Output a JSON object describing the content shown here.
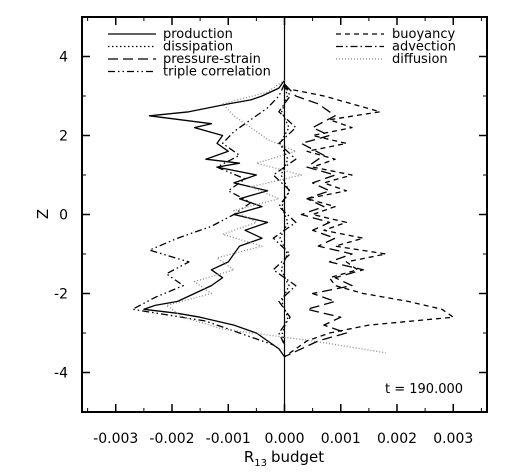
{
  "chart_data": {
    "type": "line",
    "title": "",
    "xlabel": "budget",
    "xlabel_symbol": "R",
    "xlabel_subscript": "13",
    "ylabel": "Z",
    "xlim": [
      -0.0036,
      0.0036
    ],
    "ylim": [
      -5,
      5
    ],
    "xticks": [
      -0.003,
      -0.002,
      -0.001,
      0.0,
      0.001,
      0.002,
      0.003
    ],
    "xtick_labels": [
      "-0.003",
      "-0.002",
      "-0.001",
      "0.000",
      "0.001",
      "0.002",
      "0.003"
    ],
    "yticks": [
      -4,
      -2,
      0,
      2,
      4
    ],
    "ytick_labels": [
      "-4",
      "-2",
      "0",
      "2",
      "4"
    ],
    "grid": false,
    "annotation": "t = 190.000",
    "legend": {
      "left": [
        "production",
        "dissipation",
        "pressure-strain",
        "triple correlation"
      ],
      "right": [
        "buoyancy",
        "advection",
        "diffusion"
      ]
    },
    "series": [
      {
        "name": "production",
        "style": "solid",
        "color": "#000000",
        "z": [
          3.4,
          3.2,
          3.0,
          2.9,
          2.8,
          2.6,
          2.5,
          2.3,
          2.2,
          2.0,
          1.8,
          1.6,
          1.4,
          1.3,
          1.2,
          1.0,
          0.8,
          0.6,
          0.4,
          0.2,
          0.0,
          -0.2,
          -0.4,
          -0.6,
          -0.8,
          -1.0,
          -1.2,
          -1.4,
          -1.6,
          -1.8,
          -2.0,
          -2.2,
          -2.3,
          -2.4,
          -2.5,
          -2.6,
          -2.8,
          -3.0,
          -3.2,
          -3.4,
          -3.6
        ],
        "x": [
          0.0,
          -0.0001,
          -0.0004,
          -0.0006,
          -0.001,
          -0.0017,
          -0.0024,
          -0.0013,
          -0.0016,
          -0.0011,
          -0.0012,
          -0.001,
          -0.0014,
          -0.0008,
          -0.0012,
          -0.0005,
          -0.0009,
          -0.0003,
          -0.0008,
          -0.0004,
          -0.0009,
          -0.0003,
          -0.0007,
          -0.0004,
          -0.0008,
          -0.0009,
          -0.001,
          -0.0013,
          -0.0011,
          -0.0013,
          -0.0016,
          -0.0019,
          -0.0023,
          -0.0025,
          -0.0019,
          -0.0015,
          -0.0009,
          -0.0005,
          -0.0003,
          -0.0001,
          0.0
        ]
      },
      {
        "name": "dissipation",
        "style": "dotted",
        "color": "#000000",
        "z": [
          3.3,
          3.0,
          2.6,
          2.2,
          1.8,
          1.4,
          1.0,
          0.6,
          0.2,
          -0.2,
          -0.6,
          -1.0,
          -1.4,
          -1.8,
          -2.2,
          -2.6,
          -3.0,
          -3.3
        ],
        "x": [
          0.0,
          5e-05,
          -5e-05,
          8e-05,
          -8e-05,
          6e-05,
          -6e-05,
          8e-05,
          -5e-05,
          6e-05,
          -8e-05,
          5e-05,
          -6e-05,
          8e-05,
          -5e-05,
          6e-05,
          -4e-05,
          0.0
        ]
      },
      {
        "name": "pressure-strain",
        "style": "longdash",
        "color": "#000000",
        "z": [
          3.3,
          3.0,
          2.8,
          2.5,
          2.2,
          2.0,
          1.8,
          1.5,
          1.2,
          1.0,
          0.8,
          0.6,
          0.4,
          0.2,
          0.0,
          -0.2,
          -0.4,
          -0.6,
          -0.8,
          -1.0,
          -1.2,
          -1.4,
          -1.6,
          -1.8,
          -2.0,
          -2.2,
          -2.4,
          -2.6,
          -2.8,
          -3.0,
          -3.2,
          -3.4,
          -3.6
        ],
        "x": [
          0.0,
          0.0002,
          0.0006,
          0.0009,
          0.0005,
          0.0008,
          0.0003,
          0.0007,
          0.0004,
          0.0009,
          0.0005,
          0.0008,
          0.0004,
          0.0007,
          0.0003,
          0.0008,
          0.0005,
          0.0009,
          0.0006,
          0.0012,
          0.0008,
          0.0014,
          0.0009,
          0.0012,
          0.0005,
          0.0009,
          0.0004,
          0.001,
          0.0007,
          0.0011,
          0.0006,
          0.0003,
          0.0
        ]
      },
      {
        "name": "triple correlation",
        "style": "dashdotdot",
        "color": "#000000",
        "z": [
          3.3,
          3.0,
          2.7,
          2.4,
          2.1,
          1.8,
          1.5,
          1.2,
          0.9,
          0.6,
          0.3,
          0.0,
          -0.3,
          -0.6,
          -0.9,
          -1.2,
          -1.5,
          -1.8,
          -2.1,
          -2.4,
          -2.7,
          -3.0,
          -3.3
        ],
        "x": [
          0.0,
          -0.0001,
          -0.0003,
          -0.0006,
          -0.0009,
          -0.0011,
          -0.0008,
          -0.0012,
          -0.0007,
          -0.001,
          -0.0006,
          -0.0009,
          -0.0013,
          -0.0019,
          -0.0024,
          -0.0017,
          -0.0021,
          -0.0018,
          -0.0023,
          -0.0027,
          -0.0014,
          -0.0008,
          -0.0002
        ]
      },
      {
        "name": "buoyancy",
        "style": "dashed",
        "color": "#000000",
        "z": [
          3.2,
          3.0,
          2.8,
          2.6,
          2.4,
          2.2,
          2.0,
          1.8,
          1.6,
          1.4,
          1.2,
          1.0,
          0.8,
          0.6,
          0.4,
          0.2,
          0.0,
          -0.2,
          -0.4,
          -0.6,
          -0.8,
          -1.0,
          -1.2,
          -1.4,
          -1.6,
          -1.8,
          -2.0,
          -2.2,
          -2.4,
          -2.6,
          -2.8,
          -3.0,
          -3.2,
          -3.4,
          -3.6
        ],
        "x": [
          0.0,
          0.0007,
          0.0012,
          0.0017,
          0.0008,
          0.0012,
          0.0005,
          0.0011,
          0.0004,
          0.0009,
          0.0005,
          0.0012,
          0.0007,
          0.0011,
          0.0004,
          0.0009,
          0.0005,
          0.0011,
          0.0007,
          0.0014,
          0.0009,
          0.0018,
          0.0011,
          0.0013,
          0.0008,
          0.0009,
          0.0014,
          0.0022,
          0.0028,
          0.003,
          0.0015,
          0.0008,
          0.0004,
          0.0002,
          0.0
        ]
      },
      {
        "name": "advection",
        "style": "dashdot",
        "color": "#000000",
        "z": [
          3.3,
          3.0,
          2.6,
          2.2,
          1.8,
          1.4,
          1.0,
          0.6,
          0.2,
          -0.2,
          -0.6,
          -1.0,
          -1.4,
          -1.8,
          -2.2,
          -2.6,
          -3.0,
          -3.3
        ],
        "x": [
          0.0,
          0.0001,
          -0.0001,
          0.0002,
          -0.0001,
          0.0002,
          -0.0002,
          0.0001,
          -0.0001,
          0.0002,
          -0.0002,
          0.0001,
          -0.0002,
          0.0002,
          -0.0001,
          0.0001,
          -0.0001,
          0.0
        ]
      },
      {
        "name": "diffusion",
        "style": "finedot",
        "color": "#000000",
        "z": [
          3.4,
          3.1,
          2.8,
          2.5,
          2.2,
          1.9,
          1.6,
          1.3,
          1.0,
          0.7,
          0.4,
          0.1,
          -0.2,
          -0.5,
          -0.8,
          -1.1,
          -1.4,
          -1.7,
          -2.0,
          -2.3,
          -2.6,
          -2.9,
          -3.2,
          -3.5
        ],
        "x": [
          0.0,
          -0.0003,
          -0.0011,
          -0.0009,
          -0.0006,
          -0.0003,
          0.0002,
          -0.0005,
          0.0003,
          -0.0006,
          -0.0001,
          -0.0009,
          -0.0005,
          -0.0011,
          -0.0004,
          -0.0012,
          -0.0009,
          -0.0016,
          -0.0013,
          -0.0021,
          -0.0018,
          -0.0011,
          0.0005,
          0.0018
        ]
      }
    ]
  }
}
